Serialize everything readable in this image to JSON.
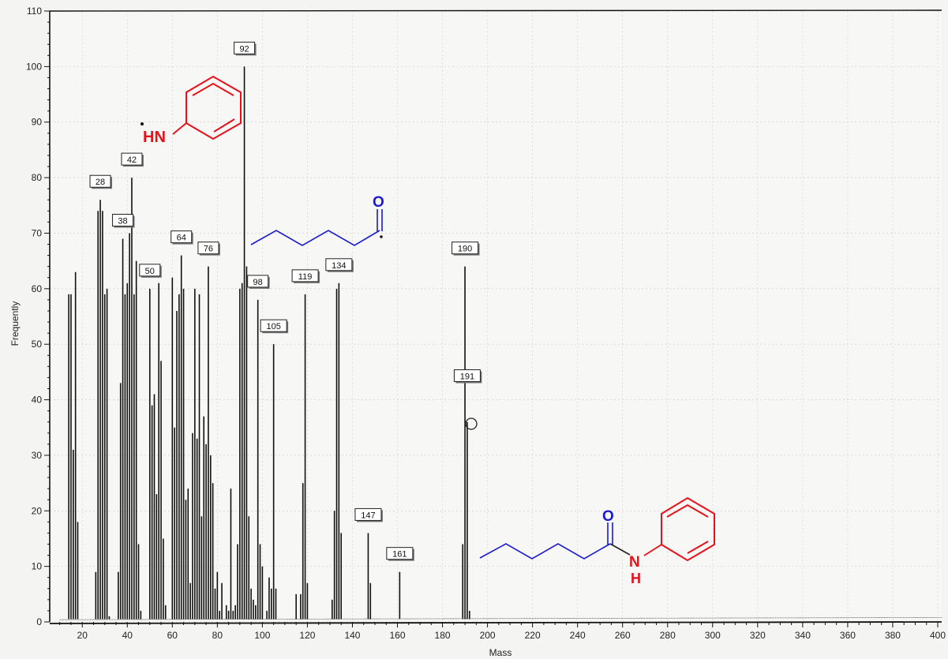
{
  "chart_data": {
    "type": "bar",
    "title": "",
    "xlabel": "Mass",
    "ylabel": "Frequently",
    "xlim": [
      8,
      400
    ],
    "ylim": [
      0,
      110
    ],
    "xticks": [
      20,
      40,
      60,
      80,
      100,
      120,
      140,
      160,
      180,
      200,
      220,
      240,
      260,
      280,
      300,
      320,
      340,
      360,
      380,
      400
    ],
    "yticks": [
      0,
      10,
      20,
      30,
      40,
      50,
      60,
      70,
      80,
      90,
      100,
      110
    ],
    "grid": true,
    "peaks": [
      {
        "x": 14,
        "y": 59
      },
      {
        "x": 15,
        "y": 59
      },
      {
        "x": 16,
        "y": 31
      },
      {
        "x": 17,
        "y": 63
      },
      {
        "x": 18,
        "y": 18
      },
      {
        "x": 26,
        "y": 9
      },
      {
        "x": 27,
        "y": 74
      },
      {
        "x": 28,
        "y": 76
      },
      {
        "x": 29,
        "y": 74
      },
      {
        "x": 30,
        "y": 59
      },
      {
        "x": 31,
        "y": 60
      },
      {
        "x": 32,
        "y": 1
      },
      {
        "x": 36,
        "y": 9
      },
      {
        "x": 37,
        "y": 43
      },
      {
        "x": 38,
        "y": 69
      },
      {
        "x": 39,
        "y": 59
      },
      {
        "x": 40,
        "y": 61
      },
      {
        "x": 41,
        "y": 70
      },
      {
        "x": 42,
        "y": 80
      },
      {
        "x": 43,
        "y": 59
      },
      {
        "x": 44,
        "y": 65
      },
      {
        "x": 45,
        "y": 14
      },
      {
        "x": 46,
        "y": 2
      },
      {
        "x": 50,
        "y": 60
      },
      {
        "x": 51,
        "y": 39
      },
      {
        "x": 52,
        "y": 41
      },
      {
        "x": 53,
        "y": 23
      },
      {
        "x": 54,
        "y": 61
      },
      {
        "x": 55,
        "y": 47
      },
      {
        "x": 56,
        "y": 15
      },
      {
        "x": 57,
        "y": 3
      },
      {
        "x": 60,
        "y": 62
      },
      {
        "x": 61,
        "y": 35
      },
      {
        "x": 62,
        "y": 56
      },
      {
        "x": 63,
        "y": 59
      },
      {
        "x": 64,
        "y": 66
      },
      {
        "x": 65,
        "y": 60
      },
      {
        "x": 66,
        "y": 22
      },
      {
        "x": 67,
        "y": 24
      },
      {
        "x": 68,
        "y": 7
      },
      {
        "x": 69,
        "y": 34
      },
      {
        "x": 70,
        "y": 60
      },
      {
        "x": 71,
        "y": 33
      },
      {
        "x": 72,
        "y": 59
      },
      {
        "x": 73,
        "y": 19
      },
      {
        "x": 74,
        "y": 37
      },
      {
        "x": 75,
        "y": 32
      },
      {
        "x": 76,
        "y": 64
      },
      {
        "x": 77,
        "y": 30
      },
      {
        "x": 78,
        "y": 25
      },
      {
        "x": 79,
        "y": 6
      },
      {
        "x": 80,
        "y": 9
      },
      {
        "x": 81,
        "y": 2
      },
      {
        "x": 82,
        "y": 7
      },
      {
        "x": 84,
        "y": 3
      },
      {
        "x": 85,
        "y": 2
      },
      {
        "x": 86,
        "y": 24
      },
      {
        "x": 87,
        "y": 2
      },
      {
        "x": 88,
        "y": 3
      },
      {
        "x": 89,
        "y": 14
      },
      {
        "x": 90,
        "y": 60
      },
      {
        "x": 91,
        "y": 61
      },
      {
        "x": 92,
        "y": 100
      },
      {
        "x": 93,
        "y": 64
      },
      {
        "x": 94,
        "y": 19
      },
      {
        "x": 95,
        "y": 6
      },
      {
        "x": 96,
        "y": 4
      },
      {
        "x": 97,
        "y": 3
      },
      {
        "x": 98,
        "y": 58
      },
      {
        "x": 99,
        "y": 14
      },
      {
        "x": 100,
        "y": 10
      },
      {
        "x": 102,
        "y": 2
      },
      {
        "x": 103,
        "y": 8
      },
      {
        "x": 104,
        "y": 6
      },
      {
        "x": 105,
        "y": 50
      },
      {
        "x": 106,
        "y": 6
      },
      {
        "x": 115,
        "y": 5
      },
      {
        "x": 117,
        "y": 5
      },
      {
        "x": 118,
        "y": 25
      },
      {
        "x": 119,
        "y": 59
      },
      {
        "x": 120,
        "y": 7
      },
      {
        "x": 131,
        "y": 4
      },
      {
        "x": 132,
        "y": 20
      },
      {
        "x": 133,
        "y": 60
      },
      {
        "x": 134,
        "y": 61
      },
      {
        "x": 135,
        "y": 16
      },
      {
        "x": 147,
        "y": 16
      },
      {
        "x": 148,
        "y": 7
      },
      {
        "x": 161,
        "y": 9
      },
      {
        "x": 189,
        "y": 14
      },
      {
        "x": 190,
        "y": 64
      },
      {
        "x": 191,
        "y": 36
      },
      {
        "x": 192,
        "y": 2
      }
    ],
    "labeled_peaks": [
      {
        "label": "28",
        "x": 28
      },
      {
        "label": "38",
        "x": 38
      },
      {
        "label": "42",
        "x": 42
      },
      {
        "label": "50",
        "x": 50
      },
      {
        "label": "64",
        "x": 64
      },
      {
        "label": "76",
        "x": 76
      },
      {
        "label": "92",
        "x": 92
      },
      {
        "label": "98",
        "x": 98
      },
      {
        "label": "105",
        "x": 105
      },
      {
        "label": "119",
        "x": 119
      },
      {
        "label": "134",
        "x": 134
      },
      {
        "label": "147",
        "x": 147
      },
      {
        "label": "161",
        "x": 161
      },
      {
        "label": "190",
        "x": 190
      },
      {
        "label": "191",
        "x": 191
      }
    ]
  },
  "annotations": {
    "aniline_radical_label": "HN",
    "acylium_oxygen": "O",
    "amide_oxygen": "O",
    "amide_n": "N",
    "amide_h": "H"
  },
  "colors": {
    "peaks": "#111111",
    "red_fragment": "#e8101a",
    "blue_fragment": "#1a1ad0"
  }
}
